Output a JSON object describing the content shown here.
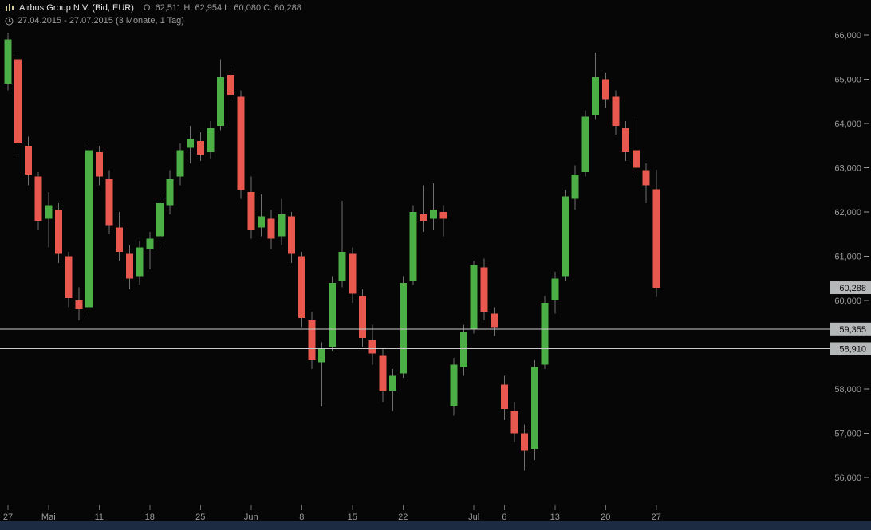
{
  "header": {
    "instrument": "Airbus Group N.V. (Bid, EUR)",
    "ohlc_line": "O: 62,511  H: 62,954  L: 60,080  C: 60,288",
    "open_label": "62,511",
    "high_label": "62,954",
    "low_label": "60,080",
    "close_label": "60,288",
    "range": "27.04.2015 - 27.07.2015 (3 Monate, 1 Tag)"
  },
  "colors": {
    "background": "#060606",
    "up": "#4caf46",
    "down": "#e8584e",
    "wick": "#6f6f6f",
    "axis_text": "#9b9b9b",
    "level_line": "#c9c9c9",
    "tag_bg": "#b4b8b8",
    "tag_text": "#0d0d0d",
    "bottom_bar": "#1c2b42"
  },
  "chart_data": {
    "type": "candlestick",
    "title": "Airbus Group N.V. (Bid, EUR)",
    "period": "27.04.2015 - 27.07.2015",
    "interval": "1 Tag",
    "currency": "EUR",
    "ylim": [
      55.4,
      66.4
    ],
    "grid": false,
    "legend": false,
    "y_ticks": [
      {
        "value": 66.0,
        "label": "66,000"
      },
      {
        "value": 65.0,
        "label": "65,000"
      },
      {
        "value": 64.0,
        "label": "64,000"
      },
      {
        "value": 63.0,
        "label": "63,000"
      },
      {
        "value": 62.0,
        "label": "62,000"
      },
      {
        "value": 61.0,
        "label": "61,000"
      },
      {
        "value": 60.0,
        "label": "60,000"
      },
      {
        "value": 58.0,
        "label": "58,000"
      },
      {
        "value": 57.0,
        "label": "57,000"
      },
      {
        "value": 56.0,
        "label": "56,000"
      }
    ],
    "x_ticks": [
      {
        "index": 0,
        "label": "27"
      },
      {
        "index": 4,
        "label": "Mai"
      },
      {
        "index": 9,
        "label": "11"
      },
      {
        "index": 14,
        "label": "18"
      },
      {
        "index": 19,
        "label": "25"
      },
      {
        "index": 24,
        "label": "Jun"
      },
      {
        "index": 29,
        "label": "8"
      },
      {
        "index": 34,
        "label": "15"
      },
      {
        "index": 39,
        "label": "22"
      },
      {
        "index": 46,
        "label": "Jul"
      },
      {
        "index": 49,
        "label": "6"
      },
      {
        "index": 54,
        "label": "13"
      },
      {
        "index": 59,
        "label": "20"
      },
      {
        "index": 64,
        "label": "27"
      }
    ],
    "dates": [
      "27.04",
      "28.04",
      "29.04",
      "30.04",
      "04.05",
      "05.05",
      "06.05",
      "07.05",
      "08.05",
      "11.05",
      "12.05",
      "13.05",
      "14.05",
      "15.05",
      "18.05",
      "19.05",
      "20.05",
      "21.05",
      "22.05",
      "25.05",
      "26.05",
      "27.05",
      "28.05",
      "29.05",
      "01.06",
      "02.06",
      "03.06",
      "04.06",
      "05.06",
      "08.06",
      "09.06",
      "10.06",
      "11.06",
      "12.06",
      "15.06",
      "16.06",
      "17.06",
      "18.06",
      "19.06",
      "22.06",
      "23.06",
      "24.06",
      "25.06",
      "26.06",
      "29.06",
      "30.06",
      "01.07",
      "02.07",
      "03.07",
      "06.07",
      "07.07",
      "08.07",
      "09.07",
      "10.07",
      "13.07",
      "14.07",
      "15.07",
      "16.07",
      "17.07",
      "20.07",
      "21.07",
      "22.07",
      "23.07",
      "24.07",
      "27.07"
    ],
    "ohlc": [
      [
        64.9,
        66.05,
        64.75,
        65.9
      ],
      [
        65.45,
        65.6,
        63.3,
        63.55
      ],
      [
        63.5,
        63.7,
        62.6,
        62.85
      ],
      [
        62.8,
        62.9,
        61.6,
        61.8
      ],
      [
        61.85,
        62.45,
        61.2,
        62.15
      ],
      [
        62.05,
        62.2,
        60.85,
        61.05
      ],
      [
        61.0,
        61.1,
        59.85,
        60.05
      ],
      [
        60.0,
        60.3,
        59.55,
        59.8
      ],
      [
        59.85,
        63.55,
        59.7,
        63.4
      ],
      [
        63.35,
        63.5,
        62.6,
        62.8
      ],
      [
        62.75,
        62.95,
        61.5,
        61.7
      ],
      [
        61.65,
        62.0,
        60.9,
        61.1
      ],
      [
        61.05,
        61.25,
        60.25,
        60.5
      ],
      [
        60.55,
        61.35,
        60.35,
        61.2
      ],
      [
        61.15,
        61.55,
        60.7,
        61.4
      ],
      [
        61.45,
        62.35,
        61.25,
        62.2
      ],
      [
        62.15,
        62.95,
        61.95,
        62.75
      ],
      [
        62.8,
        63.55,
        62.6,
        63.4
      ],
      [
        63.45,
        63.95,
        63.1,
        63.65
      ],
      [
        63.6,
        63.8,
        63.15,
        63.3
      ],
      [
        63.35,
        64.05,
        63.2,
        63.9
      ],
      [
        63.95,
        65.45,
        63.85,
        65.05
      ],
      [
        65.1,
        65.25,
        64.5,
        64.65
      ],
      [
        64.6,
        64.75,
        62.3,
        62.5
      ],
      [
        62.45,
        62.8,
        61.4,
        61.6
      ],
      [
        61.65,
        62.4,
        61.45,
        61.9
      ],
      [
        61.85,
        62.05,
        61.15,
        61.4
      ],
      [
        61.45,
        62.3,
        61.25,
        61.95
      ],
      [
        61.9,
        62.0,
        60.85,
        61.05
      ],
      [
        61.0,
        61.1,
        59.4,
        59.6
      ],
      [
        59.55,
        59.75,
        58.45,
        58.65
      ],
      [
        58.6,
        59.05,
        57.6,
        58.9
      ],
      [
        58.95,
        60.55,
        58.85,
        60.4
      ],
      [
        60.45,
        62.25,
        60.3,
        61.1
      ],
      [
        61.05,
        61.2,
        59.95,
        60.15
      ],
      [
        60.1,
        60.25,
        58.95,
        59.15
      ],
      [
        59.1,
        59.45,
        58.55,
        58.8
      ],
      [
        58.75,
        58.9,
        57.7,
        57.95
      ],
      [
        57.95,
        58.45,
        57.5,
        58.3
      ],
      [
        58.35,
        60.55,
        58.25,
        60.4
      ],
      [
        60.45,
        62.15,
        60.35,
        62.0
      ],
      [
        61.95,
        62.6,
        61.55,
        61.8
      ],
      [
        61.85,
        62.65,
        61.6,
        62.05
      ],
      [
        62.0,
        62.15,
        61.45,
        61.85
      ],
      [
        57.6,
        58.7,
        57.4,
        58.55
      ],
      [
        58.5,
        59.45,
        58.3,
        59.3
      ],
      [
        59.35,
        60.9,
        59.25,
        60.8
      ],
      [
        60.75,
        60.95,
        59.55,
        59.75
      ],
      [
        59.7,
        59.85,
        59.2,
        59.4
      ],
      [
        58.1,
        58.3,
        57.3,
        57.55
      ],
      [
        57.5,
        57.7,
        56.8,
        57.0
      ],
      [
        57.0,
        57.2,
        56.15,
        56.6
      ],
      [
        56.65,
        58.65,
        56.4,
        58.5
      ],
      [
        58.55,
        60.1,
        58.45,
        59.95
      ],
      [
        60.0,
        60.65,
        59.7,
        60.5
      ],
      [
        60.55,
        62.5,
        60.45,
        62.35
      ],
      [
        62.3,
        63.05,
        62.05,
        62.85
      ],
      [
        62.9,
        64.3,
        62.8,
        64.15
      ],
      [
        64.2,
        65.6,
        64.1,
        65.05
      ],
      [
        65.0,
        65.15,
        64.35,
        64.55
      ],
      [
        64.6,
        64.75,
        63.75,
        63.95
      ],
      [
        63.9,
        64.05,
        63.15,
        63.35
      ],
      [
        63.4,
        64.15,
        62.85,
        63.0
      ],
      [
        62.95,
        63.1,
        62.2,
        62.6
      ],
      [
        62.511,
        62.954,
        60.08,
        60.288
      ]
    ],
    "levels": [
      {
        "value": 59.355,
        "label": "59,355"
      },
      {
        "value": 58.91,
        "label": "58,910"
      }
    ],
    "last_price": {
      "value": 60.288,
      "label": "60,288"
    }
  }
}
